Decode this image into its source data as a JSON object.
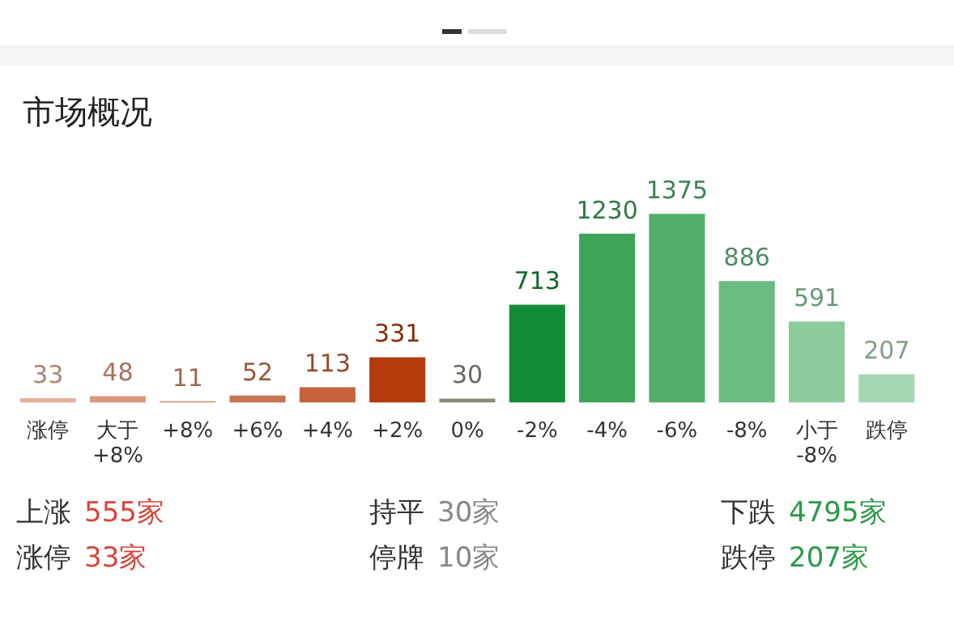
{
  "chart_data": {
    "type": "bar",
    "title": "市场概况",
    "categories": [
      "涨停",
      "大于\n+8%",
      "+8%",
      "+6%",
      "+4%",
      "+2%",
      "0%",
      "-2%",
      "-4%",
      "-6%",
      "-8%",
      "小于\n-8%",
      "跌停"
    ],
    "values": [
      33,
      48,
      11,
      52,
      113,
      331,
      30,
      713,
      1230,
      1375,
      886,
      591,
      207
    ],
    "colors": [
      "#e6b19c",
      "#d9977d",
      "#d08a6a",
      "#c87450",
      "#c8623a",
      "#b33a0a",
      "#8a8a7a",
      "#138c35",
      "#3fa35a",
      "#52ad6a",
      "#6bbb82",
      "#8ccb9c",
      "#a6d8b3"
    ],
    "data_labels": true,
    "legend": false,
    "grid": false,
    "annotations": [
      "上涨 555家",
      "持平 30家",
      "下跌 4795家",
      "涨停 33家",
      "停牌 10家",
      "跌停 207家"
    ]
  }
}
